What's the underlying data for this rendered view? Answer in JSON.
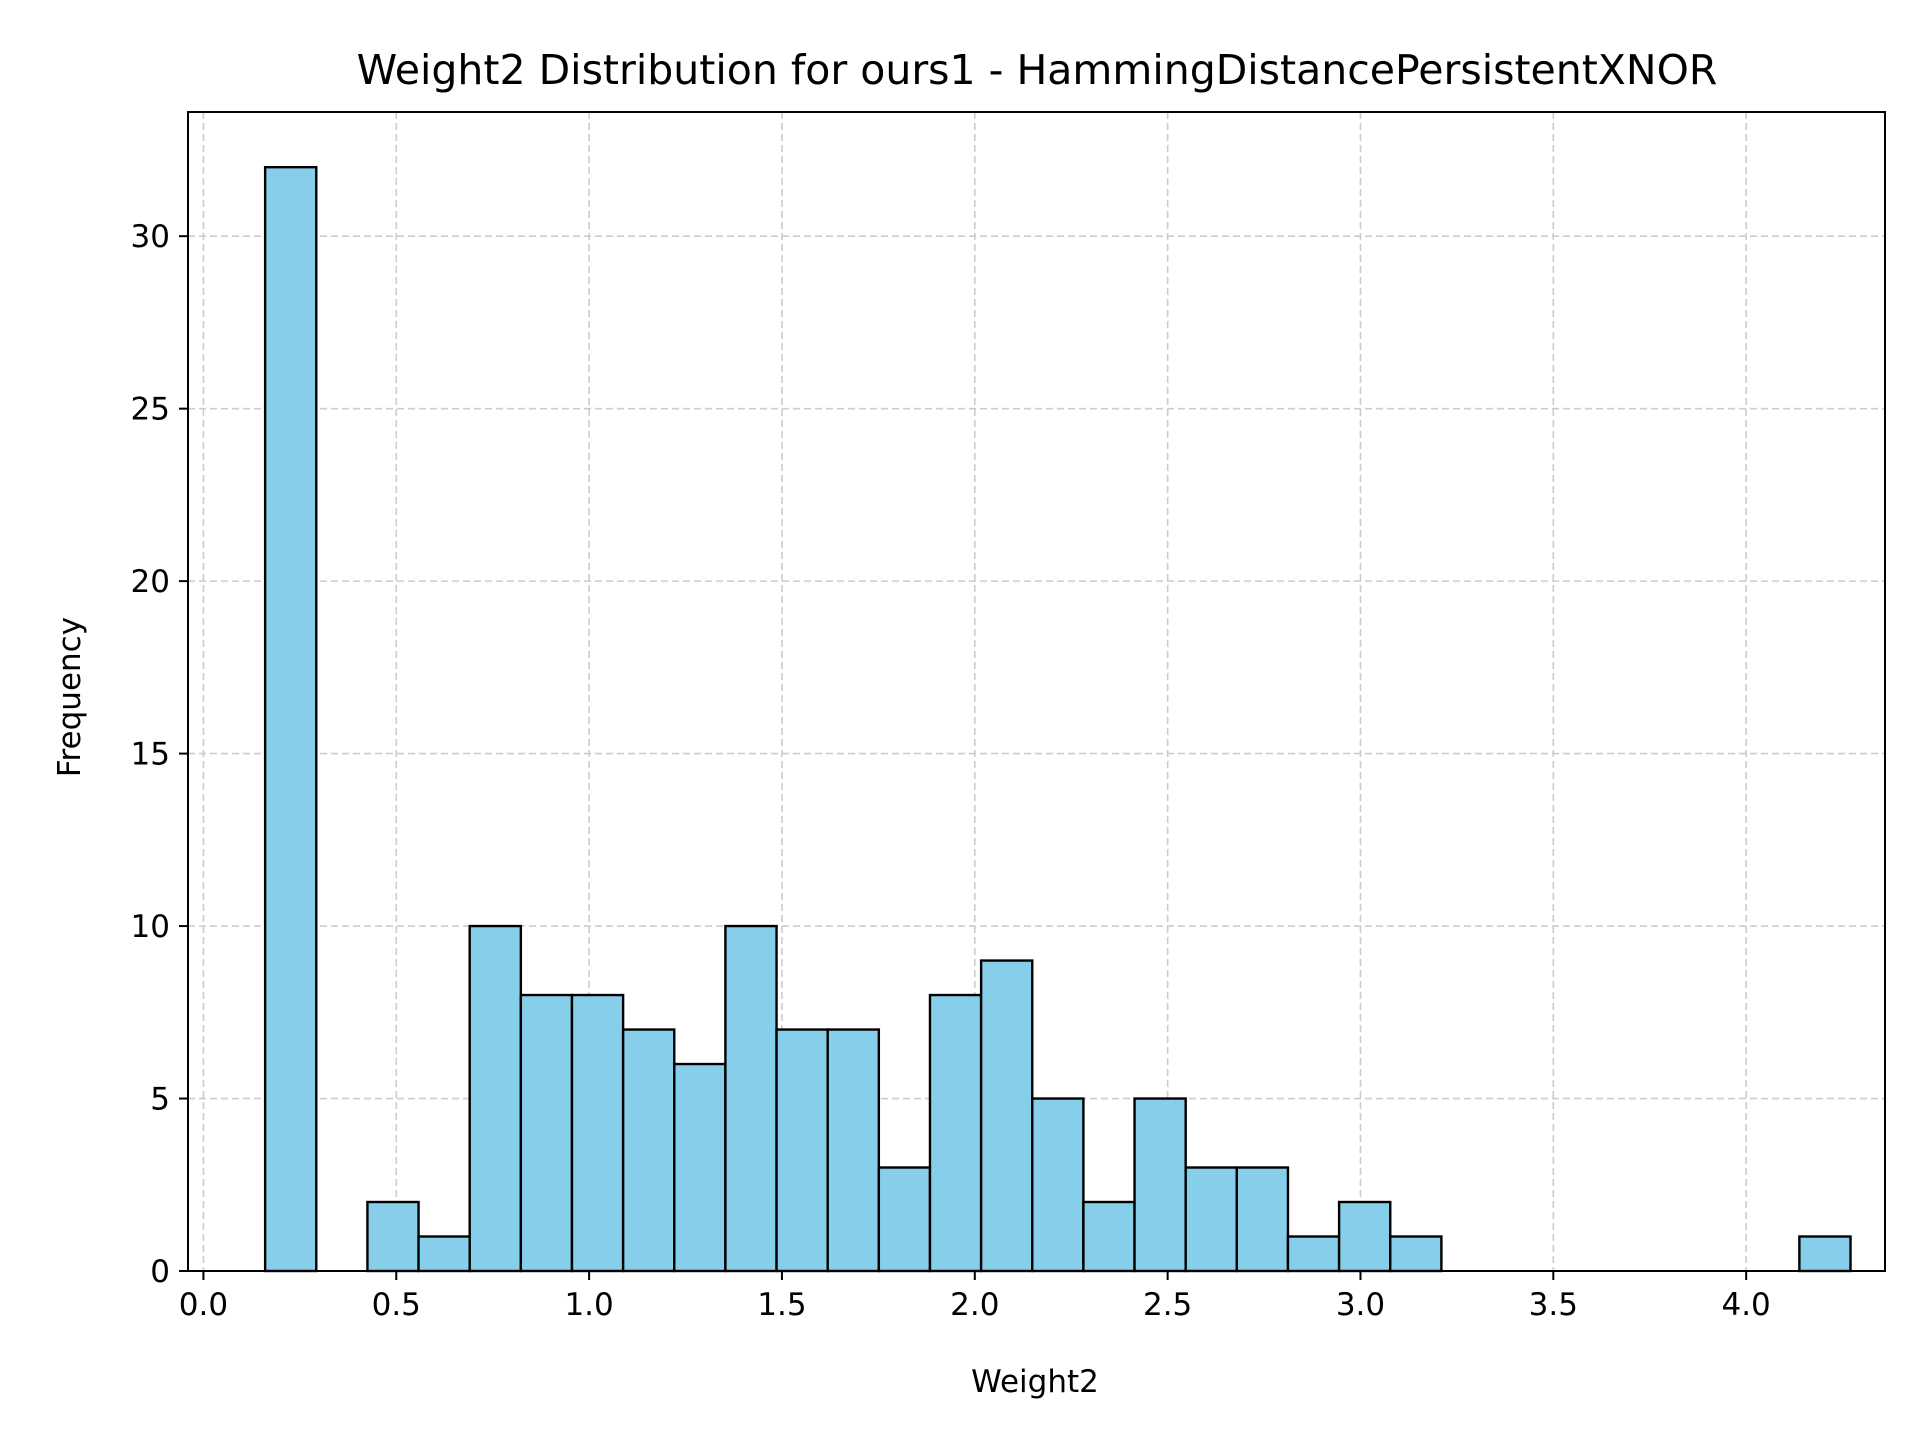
{
  "chart_data": {
    "type": "bar",
    "title": "Weight2 Distribution for ours1 - HammingDistancePersistentXNOR",
    "xlabel": "Weight2",
    "ylabel": "Frequency",
    "xlim": [
      -0.04,
      4.36
    ],
    "ylim": [
      0,
      33.6
    ],
    "xticks": [
      0.0,
      0.5,
      1.0,
      1.5,
      2.0,
      2.5,
      3.0,
      3.5,
      4.0
    ],
    "xtick_labels": [
      "0.0",
      "0.5",
      "1.0",
      "1.5",
      "2.0",
      "2.5",
      "3.0",
      "3.5",
      "4.0"
    ],
    "yticks": [
      0,
      5,
      10,
      15,
      20,
      25,
      30
    ],
    "ytick_labels": [
      "0",
      "5",
      "10",
      "15",
      "20",
      "25",
      "30"
    ],
    "grid": true,
    "bin_start": 0.16,
    "bin_width": 0.1326,
    "counts": [
      32,
      0,
      2,
      1,
      10,
      8,
      8,
      7,
      6,
      10,
      7,
      7,
      3,
      8,
      9,
      5,
      2,
      5,
      3,
      3,
      1,
      2,
      1,
      0,
      0,
      0,
      0,
      0,
      0,
      0,
      1
    ],
    "colors": {
      "bar_fill": "#87ceeb",
      "bar_edge": "#000000",
      "grid": "#cccccc"
    }
  }
}
